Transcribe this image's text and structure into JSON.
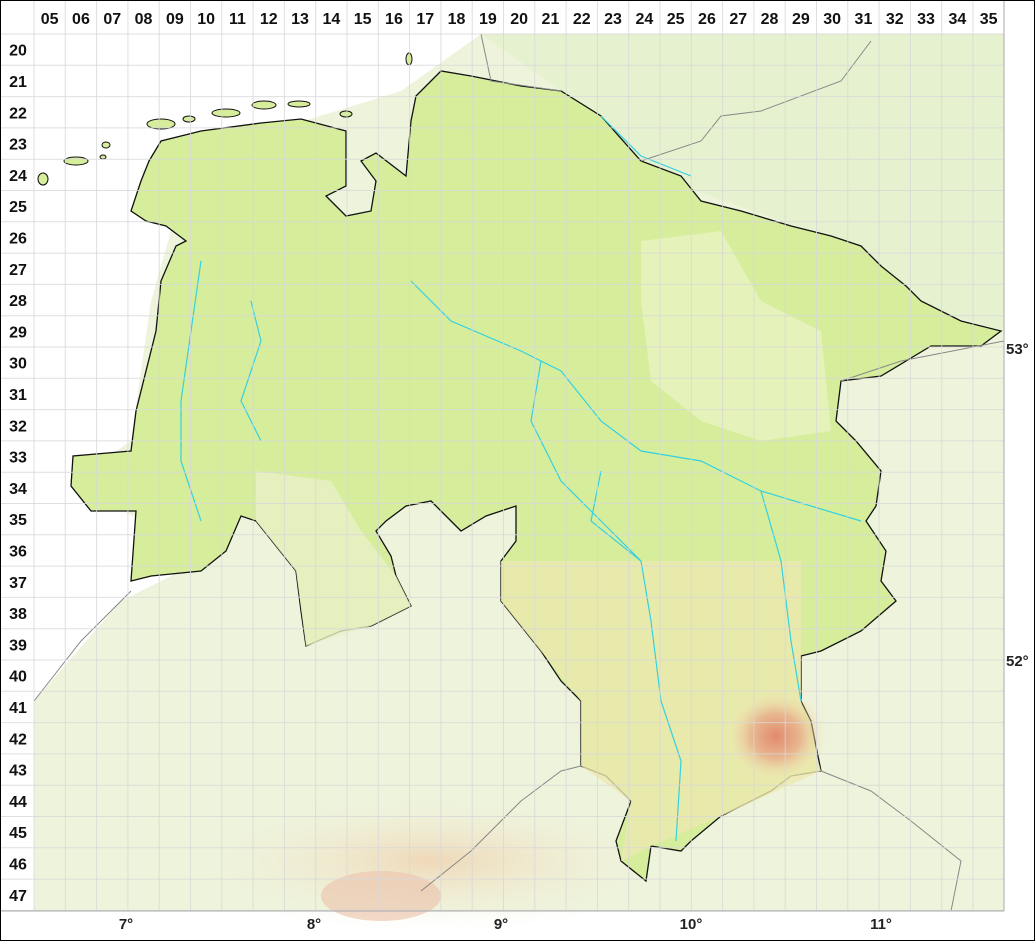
{
  "grid": {
    "columns": [
      "05",
      "06",
      "07",
      "08",
      "09",
      "10",
      "11",
      "12",
      "13",
      "14",
      "15",
      "16",
      "17",
      "18",
      "19",
      "20",
      "21",
      "22",
      "23",
      "24",
      "25",
      "26",
      "27",
      "28",
      "29",
      "30",
      "31",
      "32",
      "33",
      "34",
      "35"
    ],
    "rows": [
      "20",
      "21",
      "22",
      "23",
      "24",
      "25",
      "26",
      "27",
      "28",
      "29",
      "30",
      "31",
      "32",
      "33",
      "34",
      "35",
      "36",
      "37",
      "38",
      "39",
      "40",
      "41",
      "42",
      "43",
      "44",
      "45",
      "46",
      "47"
    ]
  },
  "longitudes": [
    "7°",
    "8°",
    "9°",
    "10°",
    "11°"
  ],
  "latitudes": [
    "53°",
    "52°"
  ],
  "colors": {
    "state_fill": "#d6ee9c",
    "lowland": "#eef4dc",
    "upland": "#efe0b0",
    "mountain": "#e0a080",
    "river": "#35d0e0",
    "border": "#111111",
    "grid": "#dcdcdc"
  }
}
